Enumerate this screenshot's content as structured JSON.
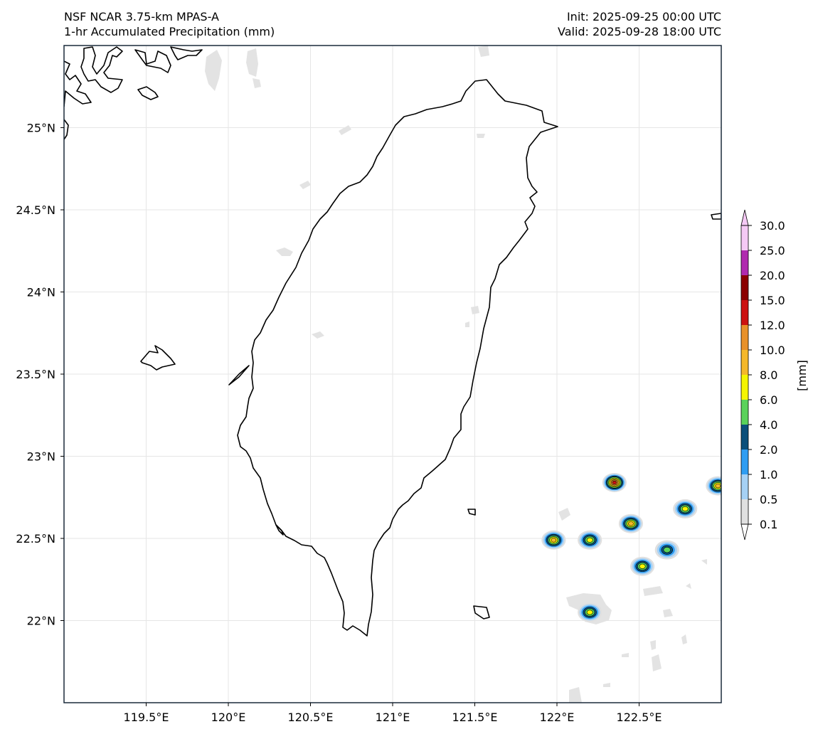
{
  "header": {
    "title_left_1": "NSF NCAR 3.75-km MPAS-A",
    "title_left_2": "1-hr Accumulated Precipitation (mm)",
    "title_right_1": "Init: 2025-09-25 00:00 UTC",
    "title_right_2": "Valid: 2025-09-28 18:00 UTC"
  },
  "map": {
    "lon_range": [
      119.0,
      123.0
    ],
    "lat_range": [
      21.5,
      25.5
    ],
    "lon_ticks": [
      "119.5°E",
      "120°E",
      "120.5°E",
      "121°E",
      "121.5°E",
      "122°E",
      "122.5°E"
    ],
    "lat_ticks": [
      "22°N",
      "22.5°N",
      "23°N",
      "23.5°N",
      "24°N",
      "24.5°N",
      "25°N"
    ],
    "gridlines": true,
    "land_outline_color": "#000000"
  },
  "colorbar": {
    "unit_label": "[mm]",
    "levels": [
      "0.1",
      "0.5",
      "1.0",
      "2.0",
      "4.0",
      "6.0",
      "8.0",
      "10.0",
      "12.0",
      "15.0",
      "20.0",
      "25.0",
      "30.0"
    ],
    "colors": [
      "#e0e0e0",
      "#a6d1f5",
      "#2f9df2",
      "#0b4f7a",
      "#5ad25a",
      "#f5f500",
      "#f5b82a",
      "#e8912a",
      "#cc1111",
      "#8b0000",
      "#b02aaf",
      "#f5c9f5"
    ],
    "extend": "both"
  },
  "precip_cells": [
    {
      "lon": 122.35,
      "lat": 22.84,
      "max_mm": 12.0
    },
    {
      "lon": 122.45,
      "lat": 22.59,
      "max_mm": 8.0
    },
    {
      "lon": 122.78,
      "lat": 22.68,
      "max_mm": 6.0
    },
    {
      "lon": 122.98,
      "lat": 22.82,
      "max_mm": 8.0
    },
    {
      "lon": 121.98,
      "lat": 22.49,
      "max_mm": 8.0
    },
    {
      "lon": 122.2,
      "lat": 22.49,
      "max_mm": 6.0
    },
    {
      "lon": 122.67,
      "lat": 22.43,
      "max_mm": 4.0
    },
    {
      "lon": 122.52,
      "lat": 22.33,
      "max_mm": 6.0
    },
    {
      "lon": 122.2,
      "lat": 22.05,
      "max_mm": 6.0
    }
  ]
}
